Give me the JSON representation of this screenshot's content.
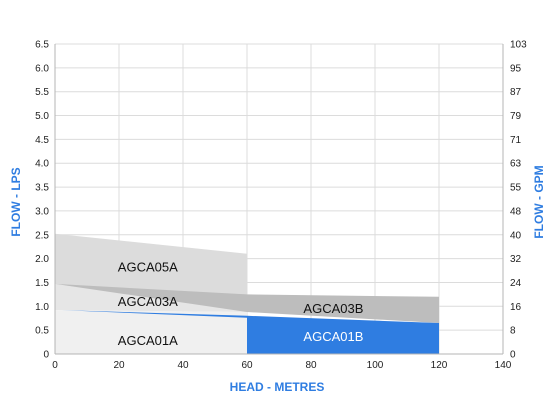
{
  "chart_data": {
    "type": "area",
    "title": "",
    "xlabel": "HEAD - METRES",
    "ylabel_left": "FLOW - LPS",
    "ylabel_right": "FLOW - GPM",
    "xlim": [
      0,
      140
    ],
    "ylim_left": [
      0,
      6.5
    ],
    "ylim_right": [
      0,
      103
    ],
    "x_ticks": [
      "0",
      "20",
      "40",
      "60",
      "80",
      "100",
      "120",
      "140"
    ],
    "y_ticks_left": [
      "0",
      "0.5",
      "1.0",
      "1.5",
      "2.0",
      "2.5",
      "3.0",
      "3.5",
      "4.0",
      "4.5",
      "5.0",
      "5.5",
      "6.0",
      "6.5"
    ],
    "y_ticks_right": [
      "0",
      "8",
      "16",
      "24",
      "32",
      "40",
      "48",
      "55",
      "63",
      "71",
      "79",
      "87",
      "95",
      "103"
    ],
    "grid": true,
    "regions": [
      {
        "name": "AGCA05A",
        "color": "#dcdcdc",
        "polygon": [
          [
            0,
            2.52
          ],
          [
            60,
            2.1
          ],
          [
            60,
            1.15
          ],
          [
            0,
            1.47
          ]
        ],
        "label_at": [
          29,
          1.82
        ]
      },
      {
        "name": "AGCA03A",
        "color": "#e6e6e6",
        "polygon": [
          [
            0,
            1.47
          ],
          [
            60,
            1.15
          ],
          [
            60,
            0.88
          ],
          [
            0,
            0.92
          ]
        ],
        "label_at": [
          29,
          1.1
        ]
      },
      {
        "name": "AGCA01A",
        "color": "#f0f0f0",
        "polygon": [
          [
            0,
            0.92
          ],
          [
            60,
            0.88
          ],
          [
            60,
            0
          ],
          [
            0,
            0
          ]
        ],
        "label_at": [
          29,
          0.28
        ]
      },
      {
        "name": "AGCA03B",
        "color": "#bdbdbd",
        "polygon": [
          [
            0,
            1.47
          ],
          [
            60,
            1.25
          ],
          [
            120,
            1.2
          ],
          [
            120,
            0.65
          ],
          [
            60,
            0.88
          ]
        ],
        "label_at": [
          87,
          0.95
        ]
      },
      {
        "name": "AGCA01B",
        "color": "#2f7de1",
        "label_color": "#ffffff",
        "polygon": [
          [
            2,
            0.92
          ],
          [
            60,
            0.8
          ],
          [
            120,
            0.65
          ],
          [
            120,
            0
          ],
          [
            60,
            0
          ],
          [
            60,
            0.76
          ]
        ],
        "label_at": [
          87,
          0.37
        ]
      }
    ],
    "colors": {
      "axis_title": "#2f7de1",
      "grid": "#dcdcdc",
      "frame": "#b5b5b5"
    }
  }
}
